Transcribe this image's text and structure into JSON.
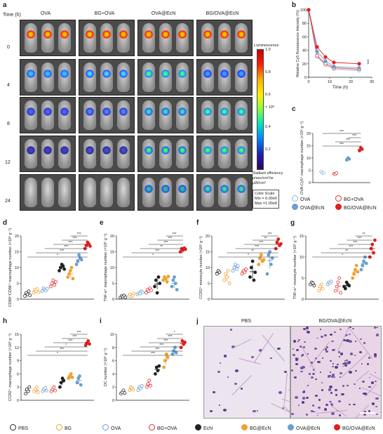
{
  "panel_a": {
    "label": "a",
    "time_label": "Time (h)",
    "groups": [
      "OVA",
      "BG+OVA",
      "OVA@EcN",
      "BG/OVA@EcN"
    ],
    "times": [
      "0",
      "4",
      "8",
      "12",
      "24"
    ],
    "colorbar": {
      "title": "Luminescence",
      "ticks": [
        "1.0",
        "0.8",
        "0.6",
        "0.4",
        "0.2"
      ],
      "exponent": "× 10⁸",
      "unit_lines": [
        "Radiant efficiency",
        "p/sec/cm²/sr",
        "μW/cm²"
      ],
      "scale_lines": [
        "Color Scale",
        "Min = 6.00e6",
        "Max =1.00e8"
      ]
    }
  },
  "panel_b": {
    "label": "b"
  },
  "panel_c": {
    "label": "c"
  },
  "panel_d": {
    "label": "d"
  },
  "panel_e": {
    "label": "e"
  },
  "panel_f": {
    "label": "f"
  },
  "panel_g": {
    "label": "g"
  },
  "panel_h": {
    "label": "h"
  },
  "panel_i": {
    "label": "i"
  },
  "panel_j": {
    "label": "j",
    "left_title": "PBS",
    "right_title": "BG/OVA@EcN"
  },
  "legend_top": [
    {
      "name": "OVA",
      "color": "#8fb8dc",
      "filled": false
    },
    {
      "name": "BG+OVA",
      "color": "#e03030",
      "filled": false
    },
    {
      "name": "OVA@EcN",
      "color": "#6a9fd0",
      "filled": true
    },
    {
      "name": "BG/OVA@EcN",
      "color": "#e02020",
      "filled": true
    }
  ],
  "legend_bottom": [
    {
      "name": "PBS",
      "color": "#222222",
      "filled": false
    },
    {
      "name": "BG",
      "color": "#f0a030",
      "filled": false
    },
    {
      "name": "OVA",
      "color": "#6a9fd0",
      "filled": false
    },
    {
      "name": "BG+OVA",
      "color": "#e03030",
      "filled": false
    },
    {
      "name": "EcN",
      "color": "#222222",
      "filled": true
    },
    {
      "name": "BG@EcN",
      "color": "#f0a030",
      "filled": true
    },
    {
      "name": "OVA@EcN",
      "color": "#6a9fd0",
      "filled": true
    },
    {
      "name": "BG/OVA@EcN",
      "color": "#e02020",
      "filled": true
    }
  ],
  "chart_data": [
    {
      "id": "b",
      "type": "line",
      "ylabel": "Relative Cy5 fluorescence intensity (%)",
      "xlabel": "Time (h)",
      "xlim": [
        0,
        30
      ],
      "ylim": [
        0,
        100
      ],
      "xticks": [
        "0",
        "10",
        "20",
        "30"
      ],
      "yticks": [
        "0",
        "20",
        "40",
        "60",
        "80",
        "100"
      ],
      "annotation": "***",
      "x": [
        0,
        4,
        8,
        12,
        24
      ],
      "series": [
        {
          "values": [
            100,
            30,
            18,
            12,
            10
          ],
          "color": "#8fb8dc",
          "filled": false
        },
        {
          "values": [
            100,
            32,
            20,
            14,
            12
          ],
          "color": "#e03030",
          "filled": false
        },
        {
          "values": [
            100,
            38,
            24,
            16,
            14
          ],
          "color": "#6a9fd0",
          "filled": true
        },
        {
          "values": [
            100,
            45,
            30,
            22,
            20
          ],
          "color": "#e02020",
          "filled": true
        }
      ]
    },
    {
      "id": "c",
      "type": "scatter",
      "ylabel": "OVA-Cy5⁺ macrophage number (×10⁶ g⁻¹)",
      "ylim": [
        0,
        20
      ],
      "yticks": [
        "0",
        "5",
        "10",
        "15",
        "20"
      ],
      "significance": [
        "***",
        "***",
        "***",
        "***"
      ],
      "groups": [
        {
          "values": [
            4.5,
            3.8,
            4.0
          ],
          "color": "#8fb8dc",
          "filled": false
        },
        {
          "values": [
            3.6,
            3.4,
            3.9
          ],
          "color": "#e03030",
          "filled": false
        },
        {
          "values": [
            9.2,
            10.0,
            9.6
          ],
          "color": "#6a9fd0",
          "filled": true
        },
        {
          "values": [
            13.0,
            14.2,
            13.6
          ],
          "color": "#e02020",
          "filled": true
        }
      ]
    },
    {
      "id": "d",
      "type": "scatter",
      "ylabel": "CD80⁺CD86⁺ macrophage number (×10⁶ g⁻¹)",
      "ylim": [
        0,
        20
      ],
      "yticks": [
        "0",
        "5",
        "10",
        "15",
        "20"
      ],
      "significance": [
        "*",
        "***",
        "***",
        "***",
        "***",
        "***"
      ],
      "groups": [
        {
          "values": [
            1,
            2,
            1.5,
            2.5,
            1.2
          ],
          "color": "#222222",
          "filled": false
        },
        {
          "values": [
            2,
            3,
            2.5,
            3.2,
            2.2
          ],
          "color": "#f0a030",
          "filled": false
        },
        {
          "values": [
            2.5,
            3.5,
            3,
            2.8,
            3.3
          ],
          "color": "#6a9fd0",
          "filled": false
        },
        {
          "values": [
            4,
            5,
            6,
            4.5,
            5.5
          ],
          "color": "#e03030",
          "filled": false
        },
        {
          "values": [
            9,
            10,
            11,
            10.5,
            9.5
          ],
          "color": "#222222",
          "filled": true
        },
        {
          "values": [
            7,
            8,
            9,
            10,
            6.5
          ],
          "color": "#f0a030",
          "filled": true
        },
        {
          "values": [
            11,
            12,
            14,
            13,
            12.5
          ],
          "color": "#6a9fd0",
          "filled": true
        },
        {
          "values": [
            16,
            17,
            18,
            17.5,
            16.8
          ],
          "color": "#e02020",
          "filled": true
        }
      ]
    },
    {
      "id": "e",
      "type": "scatter",
      "ylabel": "TNF-α⁺ macrophage number (×10⁶ g⁻¹)",
      "ylim": [
        0,
        20
      ],
      "yticks": [
        "0",
        "5",
        "10",
        "15",
        "20"
      ],
      "significance": [
        "*",
        "***",
        "**",
        "***",
        "***",
        "***"
      ],
      "groups": [
        {
          "values": [
            0.5,
            1,
            0.8,
            1.2,
            0.6
          ],
          "color": "#222222",
          "filled": false
        },
        {
          "values": [
            1,
            1.5,
            0.8,
            1.2,
            1.8
          ],
          "color": "#f0a030",
          "filled": false
        },
        {
          "values": [
            1.5,
            2,
            1.8,
            2.5,
            2.2
          ],
          "color": "#6a9fd0",
          "filled": false
        },
        {
          "values": [
            2,
            3,
            2.5,
            3.5,
            2.8
          ],
          "color": "#e03030",
          "filled": false
        },
        {
          "values": [
            4,
            6,
            2,
            7,
            5
          ],
          "color": "#222222",
          "filled": true
        },
        {
          "values": [
            6,
            7,
            6.5,
            5.5,
            7.2
          ],
          "color": "#f0a030",
          "filled": true
        },
        {
          "values": [
            4,
            6,
            7,
            5,
            3
          ],
          "color": "#6a9fd0",
          "filled": true
        },
        {
          "values": [
            15,
            16,
            15.5,
            16.2,
            15.8
          ],
          "color": "#e02020",
          "filled": true
        }
      ]
    },
    {
      "id": "f",
      "type": "scatter",
      "ylabel": "CCR2⁺ monocyte number (×10⁶ g⁻¹)",
      "ylim": [
        0,
        20
      ],
      "yticks": [
        "0",
        "5",
        "10",
        "15",
        "20"
      ],
      "significance": [
        "*",
        "**",
        "***",
        "***",
        "**",
        "***"
      ],
      "groups": [
        {
          "values": [
            8,
            9,
            8.5
          ],
          "color": "#222222",
          "filled": false
        },
        {
          "values": [
            6,
            8,
            7,
            9,
            5
          ],
          "color": "#f0a030",
          "filled": false
        },
        {
          "values": [
            9,
            10,
            11,
            9.5,
            10.5
          ],
          "color": "#6a9fd0",
          "filled": false
        },
        {
          "values": [
            8,
            9,
            8.5,
            9.5
          ],
          "color": "#e03030",
          "filled": false
        },
        {
          "values": [
            7,
            10,
            12,
            6,
            8.5
          ],
          "color": "#222222",
          "filled": true
        },
        {
          "values": [
            11,
            13,
            14,
            12,
            12.5
          ],
          "color": "#f0a030",
          "filled": true
        },
        {
          "values": [
            8,
            14,
            15,
            11,
            13
          ],
          "color": "#6a9fd0",
          "filled": true
        },
        {
          "values": [
            16,
            18,
            19,
            17,
            17.5
          ],
          "color": "#e02020",
          "filled": true
        }
      ]
    },
    {
      "id": "g",
      "type": "scatter",
      "ylabel": "TNF-α⁺ monocyte number (×10⁶ g⁻¹)",
      "ylim": [
        0,
        15
      ],
      "yticks": [
        "0",
        "5",
        "10",
        "15"
      ],
      "significance": [
        "*",
        "**",
        "***",
        "***",
        "***",
        "**"
      ],
      "groups": [
        {
          "values": [
            3.5,
            4,
            3.8,
            3.2
          ],
          "color": "#222222",
          "filled": false
        },
        {
          "values": [
            2,
            3,
            3.5,
            2.5
          ],
          "color": "#f0a030",
          "filled": false
        },
        {
          "values": [
            3.5,
            4,
            3.8,
            4.2
          ],
          "color": "#6a9fd0",
          "filled": false
        },
        {
          "values": [
            2,
            3,
            4,
            5,
            1.5
          ],
          "color": "#e03030",
          "filled": false
        },
        {
          "values": [
            3,
            2.5,
            4,
            3.5,
            3.2
          ],
          "color": "#222222",
          "filled": true
        },
        {
          "values": [
            5,
            6,
            7,
            8,
            6.5
          ],
          "color": "#f0a030",
          "filled": true
        },
        {
          "values": [
            7,
            8,
            9,
            10,
            8.5
          ],
          "color": "#6a9fd0",
          "filled": true
        },
        {
          "values": [
            10,
            12,
            13,
            11,
            14
          ],
          "color": "#e02020",
          "filled": true
        }
      ]
    },
    {
      "id": "h",
      "type": "scatter",
      "ylabel": "CCR2⁺ macrophage number (×10⁶ g⁻¹)",
      "ylim": [
        0,
        15
      ],
      "yticks": [
        "0",
        "3",
        "6",
        "9",
        "12",
        "15"
      ],
      "significance": [
        "*",
        "***",
        "*",
        "***",
        "***",
        "***"
      ],
      "groups": [
        {
          "values": [
            1.5,
            2.5,
            2,
            3
          ],
          "color": "#222222",
          "filled": false
        },
        {
          "values": [
            2,
            2.5,
            3,
            1.8
          ],
          "color": "#f0a030",
          "filled": false
        },
        {
          "values": [
            2,
            2.5,
            2.8,
            2.2
          ],
          "color": "#6a9fd0",
          "filled": false
        },
        {
          "values": [
            2,
            2.5,
            3,
            2.2
          ],
          "color": "#e03030",
          "filled": false
        },
        {
          "values": [
            3,
            4,
            5,
            4.5
          ],
          "color": "#222222",
          "filled": true
        },
        {
          "values": [
            5,
            5.5,
            6,
            5.2
          ],
          "color": "#f0a030",
          "filled": true
        },
        {
          "values": [
            4,
            5,
            5.5,
            3.5
          ],
          "color": "#6a9fd0",
          "filled": true
        },
        {
          "values": [
            12.5,
            13,
            13.5,
            12.8
          ],
          "color": "#e02020",
          "filled": true
        }
      ]
    },
    {
      "id": "i",
      "type": "scatter",
      "ylabel": "DC number (×10⁶ g⁻¹)",
      "ylim": [
        0,
        10
      ],
      "yticks": [
        "0",
        "2",
        "4",
        "6",
        "8",
        "10"
      ],
      "significance": [
        "***",
        "***",
        "***",
        "***",
        "***",
        "*"
      ],
      "groups": [
        {
          "values": [
            1,
            1.2,
            1.5,
            1.1
          ],
          "color": "#222222",
          "filled": false
        },
        {
          "values": [
            1.5,
            2,
            1.8,
            1.6
          ],
          "color": "#f0a030",
          "filled": false
        },
        {
          "values": [
            1.5,
            2,
            1.8,
            2.2
          ],
          "color": "#6a9fd0",
          "filled": false
        },
        {
          "values": [
            2,
            2.5,
            3,
            2.2
          ],
          "color": "#e03030",
          "filled": false
        },
        {
          "values": [
            4,
            5,
            4.5,
            5.2
          ],
          "color": "#222222",
          "filled": true
        },
        {
          "values": [
            5,
            6,
            7,
            6.5
          ],
          "color": "#f0a030",
          "filled": true
        },
        {
          "values": [
            7,
            7.5,
            8,
            7.2
          ],
          "color": "#6a9fd0",
          "filled": true
        },
        {
          "values": [
            8,
            9,
            8.5,
            8.8
          ],
          "color": "#e02020",
          "filled": true
        }
      ]
    }
  ]
}
